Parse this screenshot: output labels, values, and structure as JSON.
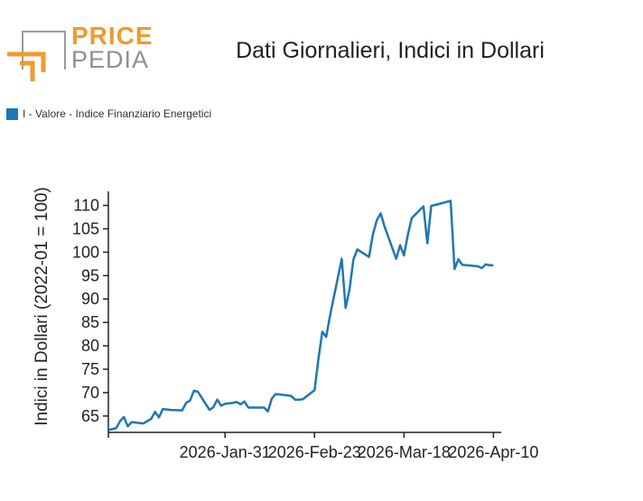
{
  "logo": {
    "word1": "PRICE",
    "word2": "PEDIA"
  },
  "colors": {
    "series": "#1f77b4",
    "logo_orange": "#f29a2e",
    "logo_grey": "#9a9a9a",
    "axis": "#222222"
  },
  "chart_data": {
    "type": "line",
    "title": "Dati Giornalieri, Indici in Dollari",
    "ylabel": "Indici in Dollari (2022-01 = 100)",
    "xlabel": "",
    "ylim": [
      61.5,
      113
    ],
    "y_ticks": [
      65,
      70,
      75,
      80,
      85,
      90,
      95,
      100,
      105,
      110
    ],
    "x_tick_labels": [
      "2026-Jan-31",
      "2026-Feb-23",
      "2026-Mar-18",
      "2026-Apr-10"
    ],
    "x_tick_dates": [
      "2026-01-31",
      "2026-02-23",
      "2026-03-18",
      "2026-04-10"
    ],
    "x_range": [
      "2026-01-01",
      "2026-04-12"
    ],
    "legend_position": "top-left",
    "grid": false,
    "series": [
      {
        "name": "I - Valore - Indice Finanziario Energetici",
        "x": [
          "2026-01-01",
          "2026-01-02",
          "2026-01-03",
          "2026-01-04",
          "2026-01-05",
          "2026-01-06",
          "2026-01-07",
          "2026-01-08",
          "2026-01-10",
          "2026-01-12",
          "2026-01-13",
          "2026-01-14",
          "2026-01-15",
          "2026-01-16",
          "2026-01-17",
          "2026-01-20",
          "2026-01-21",
          "2026-01-22",
          "2026-01-23",
          "2026-01-24",
          "2026-01-27",
          "2026-01-28",
          "2026-01-29",
          "2026-01-30",
          "2026-01-31",
          "2026-02-02",
          "2026-02-03",
          "2026-02-04",
          "2026-02-05",
          "2026-02-06",
          "2026-02-09",
          "2026-02-10",
          "2026-02-11",
          "2026-02-12",
          "2026-02-13",
          "2026-02-16",
          "2026-02-17",
          "2026-02-18",
          "2026-02-19",
          "2026-02-20",
          "2026-02-23",
          "2026-02-24",
          "2026-02-25",
          "2026-02-26",
          "2026-02-27",
          "2026-03-02",
          "2026-03-03",
          "2026-03-04",
          "2026-03-05",
          "2026-03-06",
          "2026-03-09",
          "2026-03-10",
          "2026-03-11",
          "2026-03-12",
          "2026-03-13",
          "2026-03-16",
          "2026-03-17",
          "2026-03-18",
          "2026-03-19",
          "2026-03-20",
          "2026-03-23",
          "2026-03-24",
          "2026-03-25",
          "2026-03-26",
          "2026-03-27",
          "2026-03-30",
          "2026-03-31",
          "2026-04-01",
          "2026-04-02",
          "2026-04-06",
          "2026-04-07",
          "2026-04-08",
          "2026-04-09",
          "2026-04-10"
        ],
        "y": [
          62.0,
          62.2,
          62.4,
          63.9,
          64.8,
          62.8,
          63.7,
          63.6,
          63.4,
          64.4,
          65.9,
          64.7,
          66.5,
          66.4,
          66.3,
          66.2,
          67.8,
          68.3,
          70.4,
          70.2,
          66.3,
          66.9,
          68.5,
          67.2,
          67.6,
          67.8,
          68.0,
          67.5,
          68.1,
          66.8,
          66.8,
          66.8,
          66.0,
          68.7,
          69.7,
          69.4,
          69.3,
          68.5,
          68.5,
          68.6,
          70.5,
          77.2,
          83.0,
          81.9,
          86.5,
          98.6,
          88.1,
          92.0,
          98.4,
          100.6,
          99.0,
          103.8,
          106.8,
          108.3,
          105.5,
          98.6,
          101.5,
          99.3,
          103.7,
          107.3,
          109.8,
          101.9,
          109.9,
          110.1,
          110.3,
          111.0,
          96.4,
          98.5,
          97.3,
          97.0,
          96.6,
          97.4,
          97.2,
          97.2
        ]
      }
    ]
  }
}
